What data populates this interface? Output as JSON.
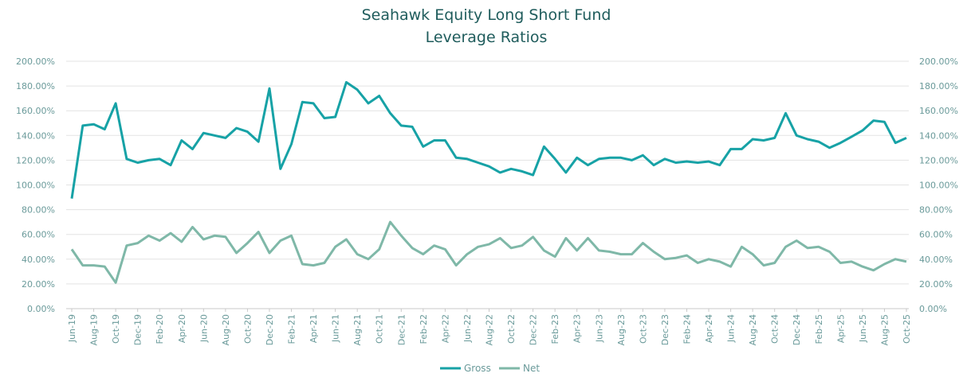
{
  "chart_data": {
    "type": "line",
    "title": "Seahawk Equity Long Short Fund",
    "subtitle": "Leverage Ratios",
    "ylim": [
      0,
      200
    ],
    "yticks": [
      "0.00%",
      "20.00%",
      "40.00%",
      "60.00%",
      "80.00%",
      "100.00%",
      "120.00%",
      "140.00%",
      "160.00%",
      "180.00%",
      "200.00%"
    ],
    "xtick_labels": [
      "Jun-19",
      "Aug-19",
      "Oct-19",
      "Dec-19",
      "Feb-20",
      "Apr-20",
      "Jun-20",
      "Aug-20",
      "Oct-20",
      "Dec-20",
      "Feb-21",
      "Apr-21",
      "Jun-21",
      "Aug-21",
      "Oct-21",
      "Dec-21",
      "Feb-22",
      "Apr-22",
      "Jun-22",
      "Aug-22",
      "Oct-22",
      "Dec-22",
      "Feb-23",
      "Apr-23",
      "Jun-23",
      "Aug-23",
      "Oct-23",
      "Dec-23",
      "Feb-24",
      "Apr-24",
      "Jun-24",
      "Aug-24",
      "Oct-24",
      "Dec-24",
      "Feb-25",
      "Apr-25",
      "Jun-25",
      "Aug-25",
      "Oct-25"
    ],
    "legend_position": "bottom-center",
    "series": [
      {
        "name": "Gross",
        "color": "#17a2a6",
        "values": [
          89,
          148,
          149,
          145,
          166,
          121,
          118,
          120,
          121,
          116,
          136,
          129,
          142,
          140,
          138,
          146,
          143,
          135,
          178,
          113,
          133,
          167,
          166,
          154,
          155,
          183,
          177,
          166,
          172,
          158,
          148,
          147,
          131,
          136,
          136,
          122,
          121,
          118,
          115,
          110,
          113,
          111,
          108,
          131,
          121,
          110,
          122,
          116,
          121,
          122,
          122,
          120,
          124,
          116,
          121,
          118,
          119,
          118,
          119,
          116,
          129,
          129,
          137,
          136,
          138,
          158,
          140,
          137,
          135,
          130,
          134,
          139,
          144,
          152,
          151,
          134,
          138
        ]
      },
      {
        "name": "Net",
        "color": "#7fb8a8",
        "values": [
          48,
          35,
          35,
          34,
          21,
          51,
          53,
          59,
          55,
          61,
          54,
          66,
          56,
          59,
          58,
          45,
          53,
          62,
          45,
          55,
          59,
          36,
          35,
          37,
          50,
          56,
          44,
          40,
          48,
          70,
          59,
          49,
          44,
          51,
          48,
          35,
          44,
          50,
          52,
          57,
          49,
          51,
          58,
          47,
          42,
          57,
          47,
          57,
          47,
          46,
          44,
          44,
          53,
          46,
          40,
          41,
          43,
          37,
          40,
          38,
          34,
          50,
          44,
          35,
          37,
          50,
          55,
          49,
          50,
          46,
          37,
          38,
          34,
          31,
          36,
          40,
          38
        ]
      }
    ]
  }
}
